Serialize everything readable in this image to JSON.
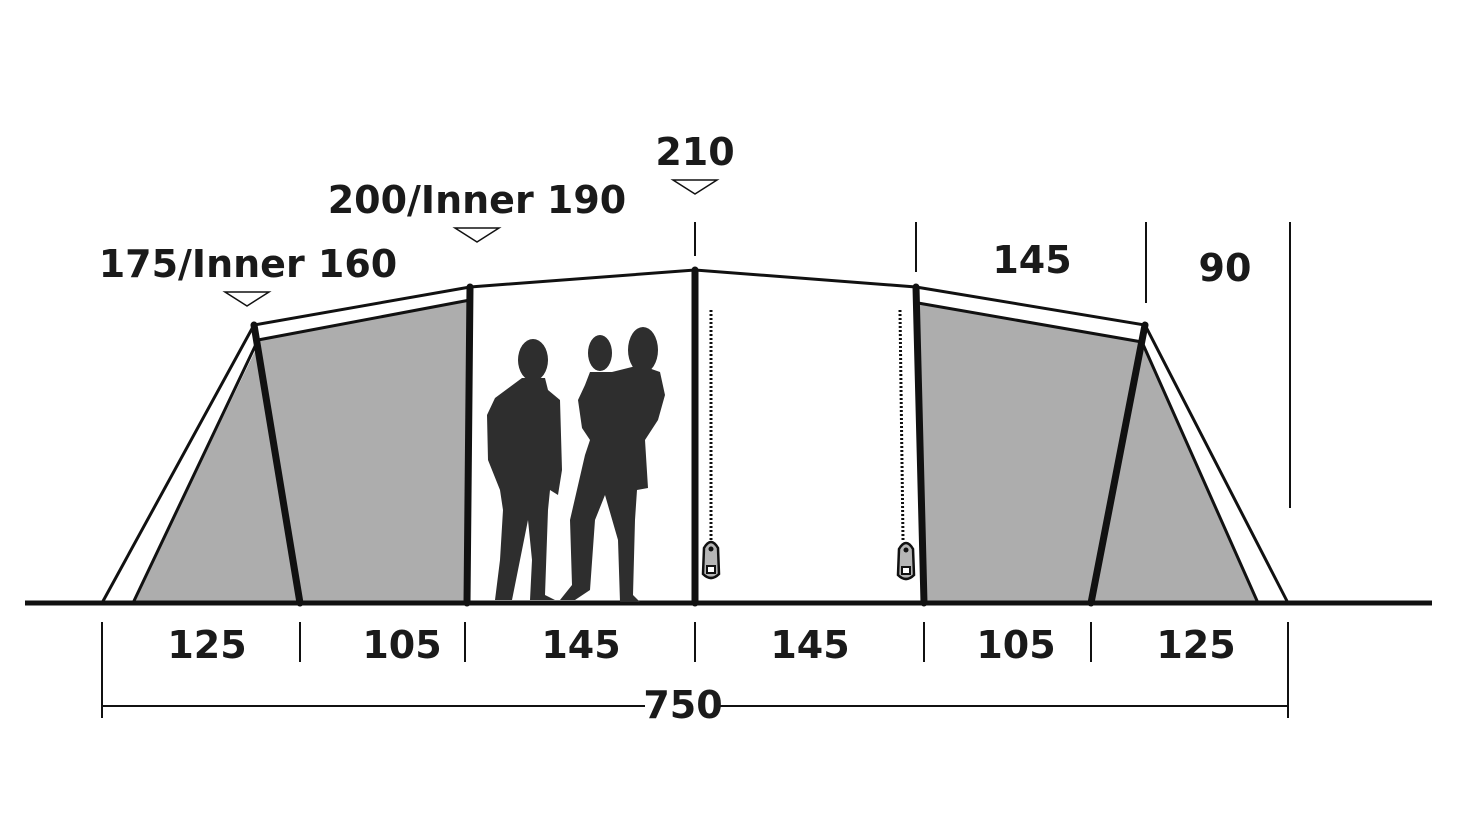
{
  "height_labels": {
    "end_height": "175/Inner 160",
    "mid_height": "200/Inner 190",
    "center_height": "210",
    "right_section_width": "145",
    "right_end_width": "90"
  },
  "segment_widths": [
    "125",
    "105",
    "145",
    "145",
    "105",
    "125"
  ],
  "total_length": "750",
  "colors": {
    "inner_tent": "#adadad",
    "lines": "#111111",
    "silhouettes": "#2e2e2e",
    "zipper": "#b5b5b5"
  }
}
